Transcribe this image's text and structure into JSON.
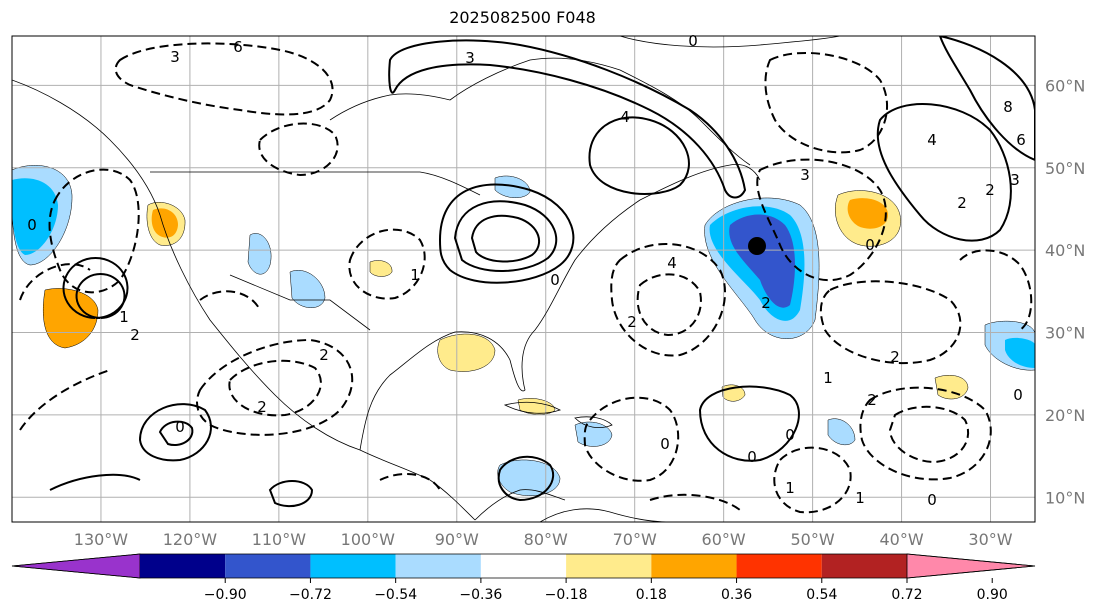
{
  "title": "2025082500 F048",
  "map": {
    "projection": "equirectangular",
    "lon_range": [
      -140,
      -25
    ],
    "lat_range": [
      7,
      66
    ],
    "gridlines": true,
    "lon_ticks": [
      "130°W",
      "120°W",
      "110°W",
      "100°W",
      "90°W",
      "80°W",
      "70°W",
      "60°W",
      "50°W",
      "40°W",
      "30°W"
    ],
    "lat_ticks": [
      "60°N",
      "50°N",
      "40°N",
      "30°N",
      "20°N",
      "10°N"
    ],
    "lines": {
      "solid": "positive contours",
      "dashed": "negative contours"
    },
    "contour_labels": [
      "6",
      "3",
      "0",
      "4",
      "3",
      "0",
      "2",
      "1",
      "2",
      "0",
      "2",
      "1",
      "0",
      "2",
      "4",
      "3",
      "0",
      "2",
      "0",
      "1",
      "0",
      "1",
      "2",
      "0",
      "1",
      "2",
      "0",
      "4",
      "2",
      "8",
      "6",
      "3",
      "2",
      "0"
    ],
    "center_marker_color": "#000000"
  },
  "colorbar": {
    "ticks": [
      "−0.90",
      "−0.72",
      "−0.54",
      "−0.36",
      "−0.18",
      "0.18",
      "0.36",
      "0.54",
      "0.72",
      "0.90"
    ],
    "colors": [
      "#9933cc",
      "#00008b",
      "#3355cc",
      "#00bfff",
      "#aadcff",
      "#ffffff",
      "#ffeb8c",
      "#ffa500",
      "#ff3300",
      "#b22222",
      "#ff88aa"
    ]
  }
}
